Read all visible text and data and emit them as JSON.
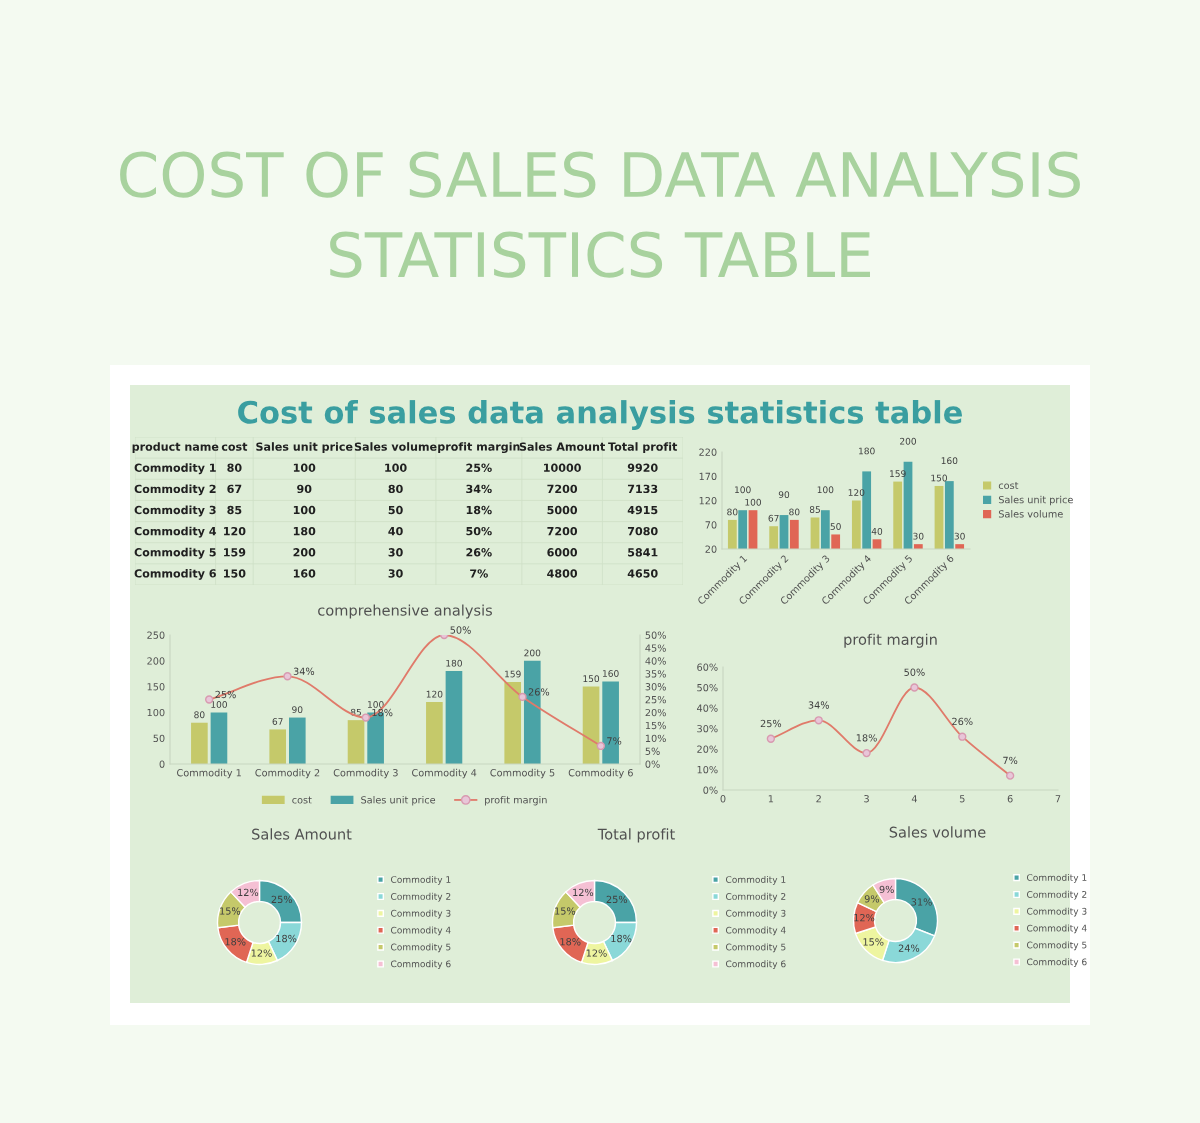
{
  "chart_data": [
    {
      "type": "other",
      "title": "COST OF SALES DATA ANALYSIS STATISTICS TABLE"
    },
    {
      "type": "other",
      "title": "Cost of sales data analysis statistics table",
      "categories": [
        "product name",
        "cost",
        "Sales unit price",
        "Sales volume",
        "profit margin",
        "Sales Amount",
        "Total profit"
      ],
      "y_categories": [
        "Commodity 1",
        "Commodity 2",
        "Commodity 3",
        "Commodity 4",
        "Commodity 5",
        "Commodity 6"
      ],
      "cell_labels": [
        [
          "80",
          "100",
          "100",
          "25%",
          "10000",
          "9920"
        ],
        [
          "67",
          "90",
          "80",
          "34%",
          "7200",
          "7133"
        ],
        [
          "85",
          "100",
          "50",
          "18%",
          "5000",
          "4915"
        ],
        [
          "120",
          "180",
          "40",
          "50%",
          "7200",
          "7080"
        ],
        [
          "159",
          "200",
          "30",
          "26%",
          "6000",
          "5841"
        ],
        [
          "150",
          "160",
          "30",
          "7%",
          "4800",
          "4650"
        ]
      ]
    },
    {
      "type": "bar",
      "categories": [
        "Commodity 1",
        "Commodity 2",
        "Commodity 3",
        "Commodity 4",
        "Commodity 5",
        "Commodity 6"
      ],
      "series": [
        {
          "name": "cost",
          "color": "#c5c96a",
          "values": [
            80,
            67,
            85,
            120,
            159,
            150
          ]
        },
        {
          "name": "Sales unit price",
          "color": "#4aa3a6",
          "values": [
            100,
            90,
            100,
            180,
            200,
            160
          ]
        },
        {
          "name": "Sales volume",
          "color": "#e06655",
          "values": [
            100,
            80,
            50,
            40,
            30,
            30
          ]
        }
      ],
      "ylim": [
        20,
        220
      ],
      "yticks": [
        20,
        70,
        120,
        170,
        220
      ],
      "data_labels": true,
      "legend": "right"
    },
    {
      "type": "bar",
      "title": "comprehensive analysis",
      "categories": [
        "Commodity 1",
        "Commodity 2",
        "Commodity 3",
        "Commodity 4",
        "Commodity 5",
        "Commodity 6"
      ],
      "series": [
        {
          "name": "cost",
          "color": "#c5c96a",
          "values": [
            80,
            67,
            85,
            120,
            159,
            150
          ]
        },
        {
          "name": "Sales unit price",
          "color": "#4aa3a6",
          "values": [
            100,
            90,
            100,
            180,
            200,
            160
          ]
        },
        {
          "name": "profit margin",
          "type": "line",
          "axis": "y2",
          "color": "#e07a6a",
          "values": [
            25,
            34,
            18,
            50,
            26,
            7
          ],
          "value_labels": [
            "25%",
            "34%",
            "18%",
            "50%",
            "26%",
            "7%"
          ]
        }
      ],
      "ylim": [
        0,
        250
      ],
      "yticks": [
        0,
        50,
        100,
        150,
        200,
        250
      ],
      "y2lim": [
        0,
        50
      ],
      "y2ticks": [
        {
          "value": 0,
          "label": "0%"
        },
        {
          "value": 5,
          "label": "5%"
        },
        {
          "value": 10,
          "label": "10%"
        },
        {
          "value": 15,
          "label": "15%"
        },
        {
          "value": 20,
          "label": "20%"
        },
        {
          "value": 25,
          "label": "25%"
        },
        {
          "value": 30,
          "label": "30%"
        },
        {
          "value": 35,
          "label": "35%"
        },
        {
          "value": 40,
          "label": "40%"
        },
        {
          "value": 45,
          "label": "45%"
        },
        {
          "value": 50,
          "label": "50%"
        }
      ],
      "data_labels": true,
      "marker": "circle",
      "legend": "bottom"
    },
    {
      "type": "line",
      "title": "profit margin",
      "x": [
        1,
        2,
        3,
        4,
        5,
        6
      ],
      "values": [
        25,
        34,
        18,
        50,
        26,
        7
      ],
      "value_labels": [
        "25%",
        "34%",
        "18%",
        "50%",
        "26%",
        "7%"
      ],
      "color": "#e07a6a",
      "marker": "circle",
      "xlim": [
        0,
        7
      ],
      "xticks": [
        0,
        1,
        2,
        3,
        4,
        5,
        6,
        7
      ],
      "ylim": [
        0,
        60
      ],
      "yticks": [
        {
          "value": 0,
          "label": "0%"
        },
        {
          "value": 10,
          "label": "10%"
        },
        {
          "value": 20,
          "label": "20%"
        },
        {
          "value": 30,
          "label": "30%"
        },
        {
          "value": 40,
          "label": "40%"
        },
        {
          "value": 50,
          "label": "50%"
        },
        {
          "value": 60,
          "label": "60%"
        }
      ]
    },
    {
      "type": "donut",
      "title": "Sales Amount",
      "categories": [
        "Commodity 1",
        "Commodity 2",
        "Commodity 3",
        "Commodity 4",
        "Commodity 5",
        "Commodity 6"
      ],
      "values": [
        25,
        18,
        12,
        18,
        15,
        12
      ],
      "value_labels": [
        "25%",
        "18%",
        "12%",
        "18%",
        "15%",
        "12%"
      ],
      "colors": [
        "#4aa3a6",
        "#8ad8d8",
        "#eef5a0",
        "#e06655",
        "#c5c96a",
        "#f5c0d4"
      ],
      "legend": "right"
    },
    {
      "type": "donut",
      "title": "Total profit",
      "categories": [
        "Commodity 1",
        "Commodity 2",
        "Commodity 3",
        "Commodity 4",
        "Commodity 5",
        "Commodity 6"
      ],
      "values": [
        25,
        18,
        12,
        18,
        15,
        12
      ],
      "value_labels": [
        "25%",
        "18%",
        "12%",
        "18%",
        "15%",
        "12%"
      ],
      "colors": [
        "#4aa3a6",
        "#8ad8d8",
        "#eef5a0",
        "#e06655",
        "#c5c96a",
        "#f5c0d4"
      ],
      "legend": "right"
    },
    {
      "type": "donut",
      "title": "Sales volume",
      "categories": [
        "Commodity 1",
        "Commodity 2",
        "Commodity 3",
        "Commodity 4",
        "Commodity 5",
        "Commodity 6"
      ],
      "values": [
        31,
        24,
        15,
        12,
        9,
        9
      ],
      "value_labels": [
        "31%",
        "24%",
        "15%",
        "12%",
        "9%",
        "9%"
      ],
      "colors": [
        "#4aa3a6",
        "#8ad8d8",
        "#eef5a0",
        "#e06655",
        "#c5c96a",
        "#f5c0d4"
      ],
      "legend": "right"
    }
  ]
}
